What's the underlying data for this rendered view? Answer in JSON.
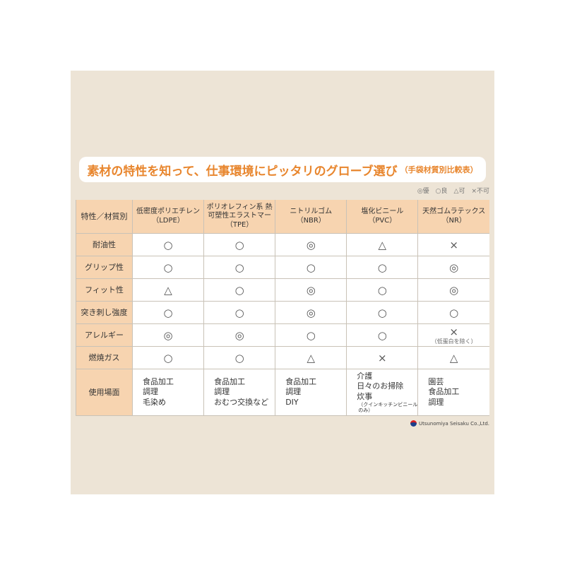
{
  "title": "素材の特性を知って、仕事環境にピッタリのグローブ選び",
  "subtitle": "（手袋材質別比較表）",
  "legend": "◎優　○良　△可　×不可",
  "table": {
    "corner": "特性／材質別",
    "columns": [
      {
        "name": "低密度ポリエチレン",
        "abbr": "（LDPE）"
      },
      {
        "name": "ポリオレフィン系 熱可塑性エラストマー",
        "abbr": "（TPE）"
      },
      {
        "name": "ニトリルゴム",
        "abbr": "（NBR）"
      },
      {
        "name": "塩化ビニール",
        "abbr": "（PVC）"
      },
      {
        "name": "天然ゴムラテックス",
        "abbr": "（NR）"
      }
    ],
    "rows": [
      {
        "label": "耐油性",
        "values": [
          "○",
          "○",
          "◎",
          "△",
          "×"
        ]
      },
      {
        "label": "グリップ性",
        "values": [
          "○",
          "○",
          "○",
          "○",
          "◎"
        ]
      },
      {
        "label": "フィット性",
        "values": [
          "△",
          "○",
          "◎",
          "○",
          "◎"
        ]
      },
      {
        "label": "突き刺し強度",
        "values": [
          "○",
          "○",
          "◎",
          "○",
          "○"
        ]
      },
      {
        "label": "アレルギー",
        "values": [
          "◎",
          "◎",
          "○",
          "○",
          "×"
        ],
        "note": "（低蛋白を除く）"
      },
      {
        "label": "燃焼ガス",
        "values": [
          "○",
          "○",
          "△",
          "×",
          "△"
        ]
      }
    ],
    "usage": {
      "label": "使用場面",
      "cells": [
        [
          "食品加工",
          "調理",
          "毛染め"
        ],
        [
          "食品加工",
          "調理",
          "おむつ交換など"
        ],
        [
          "食品加工",
          "調理",
          "DIY"
        ],
        [
          "介護",
          "日々のお掃除",
          "炊事"
        ],
        [
          "園芸",
          "食品加工",
          "調理"
        ]
      ],
      "pvc_note": "（クインキッチンビニールのみ）"
    }
  },
  "company": "Utsunomiya Seisaku Co.,Ltd."
}
